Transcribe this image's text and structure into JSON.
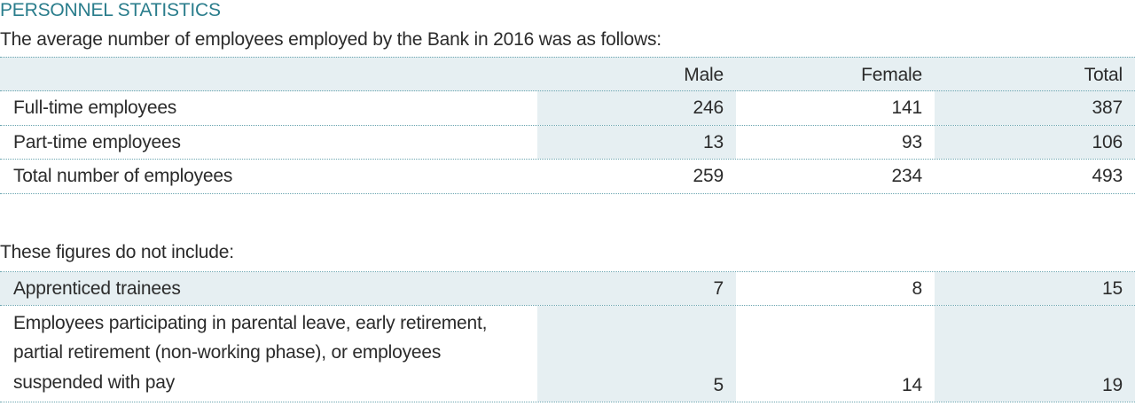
{
  "section_title": "PERSONNEL STATISTICS",
  "intro_text": "The average number of employees employed by the Bank in 2016 was as follows:",
  "table1": {
    "headers": [
      "",
      "Male",
      "Female",
      "Total"
    ],
    "rows": [
      {
        "label": "Full-time employees",
        "male": "246",
        "female": "141",
        "total": "387"
      },
      {
        "label": "Part-time employees",
        "male": "13",
        "female": "93",
        "total": "106"
      },
      {
        "label": "Total number of employees",
        "male": "259",
        "female": "234",
        "total": "493"
      }
    ]
  },
  "exclusion_text": "These figures do not include:",
  "table2": {
    "rows": [
      {
        "label": "Apprenticed trainees",
        "male": "7",
        "female": "8",
        "total": "15"
      },
      {
        "label": "Employees participating in parental leave, early retirement, partial retirement (non-working phase), or employees suspended with pay",
        "male": "5",
        "female": "14",
        "total": "19"
      }
    ]
  },
  "colors": {
    "heading": "#2a7d8c",
    "shade": "#e6eff2",
    "rule": "#6aa5b0",
    "text": "#2b2b2b"
  }
}
